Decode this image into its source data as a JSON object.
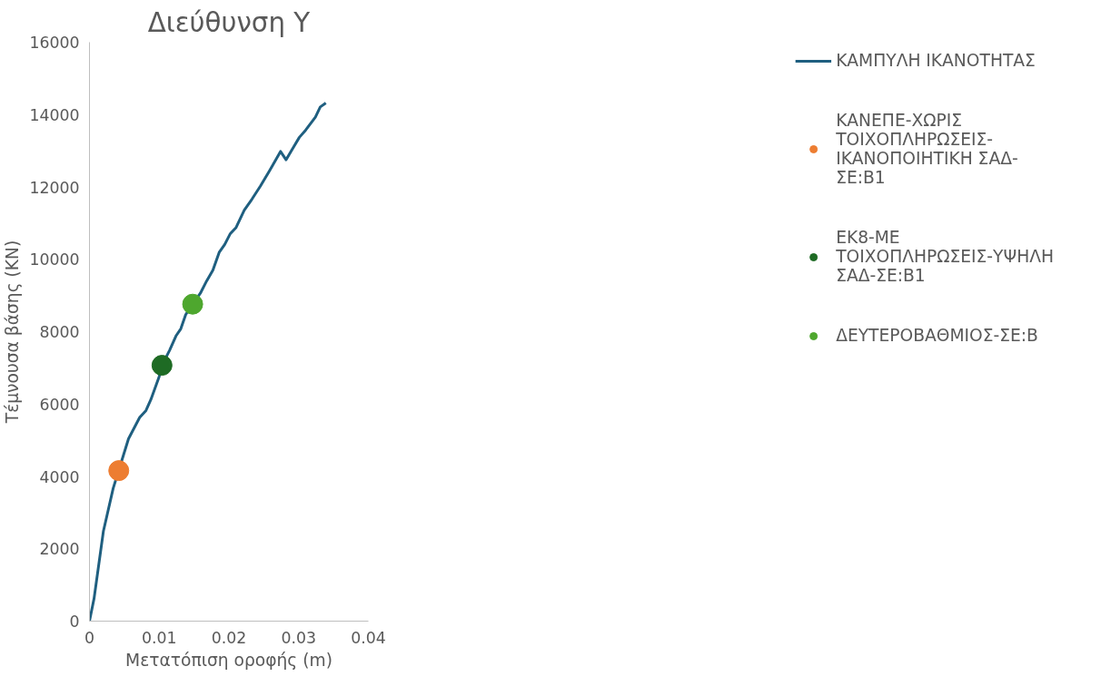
{
  "chart_data": {
    "type": "line",
    "title": "Διεύθυνση Y",
    "xlabel": "Μετατόπιση οροφής (m)",
    "ylabel": "Τέμνουσα βάσης (KN)",
    "xlim": [
      0,
      0.04
    ],
    "xticks": [
      0,
      0.01,
      0.02,
      0.03,
      0.04
    ],
    "ylim": [
      0,
      16000
    ],
    "yticks": [
      0,
      2000,
      4000,
      6000,
      8000,
      10000,
      12000,
      14000,
      16000
    ],
    "grid": false,
    "legend": "right",
    "series": [
      {
        "name": "ΚΑΜΠΥΛΗ ΙΚΑΝΟΤΗΤΑΣ",
        "color": "#1f5f80",
        "marker": "none",
        "x": [
          0,
          0.00066,
          0.002,
          0.0034,
          0.0056,
          0.0072,
          0.0081,
          0.0088,
          0.01,
          0.0104,
          0.0115,
          0.0124,
          0.0131,
          0.0138,
          0.0148,
          0.0159,
          0.0168,
          0.0177,
          0.0186,
          0.0194,
          0.0202,
          0.021,
          0.0222,
          0.0233,
          0.0245,
          0.0258,
          0.0274,
          0.0282,
          0.0292,
          0.0301,
          0.031,
          0.0324,
          0.0331,
          0.0339
        ],
        "values": [
          0,
          630,
          2490,
          3670,
          5040,
          5630,
          5820,
          6120,
          6760,
          7070,
          7490,
          7880,
          8080,
          8470,
          8760,
          9060,
          9400,
          9700,
          10190,
          10410,
          10710,
          10870,
          11360,
          11660,
          12020,
          12440,
          12980,
          12750,
          13080,
          13370,
          13570,
          13930,
          14210,
          14320
        ]
      },
      {
        "name": "ΚΑΝΕΠΕ-ΧΩΡΙΣ ΤΟΙΧΟΠΛΗΡΩΣΕΙΣ-ΙΚΑΝΟΠΟΙΗΤΙΚΗ ΣΑΔ-ΣΕ:Β1",
        "type": "scatter",
        "color": "#ed7d31",
        "marker": "circle",
        "x": [
          0.0042
        ],
        "values": [
          4160
        ]
      },
      {
        "name": "ΕΚ8-ΜΕ ΤΟΙΧΟΠΛΗΡΩΣΕΙΣ-ΥΨΗΛΗ ΣΑΔ-ΣΕ:Β1",
        "type": "scatter",
        "color": "#1e6b24",
        "marker": "circle",
        "x": [
          0.0104
        ],
        "values": [
          7070
        ]
      },
      {
        "name": "ΔΕΥΤΕΡΟΒΑΘΜΙΟΣ-ΣΕ:Β",
        "type": "scatter",
        "color": "#4ea72e",
        "marker": "circle",
        "x": [
          0.0148
        ],
        "values": [
          8760
        ]
      }
    ]
  }
}
